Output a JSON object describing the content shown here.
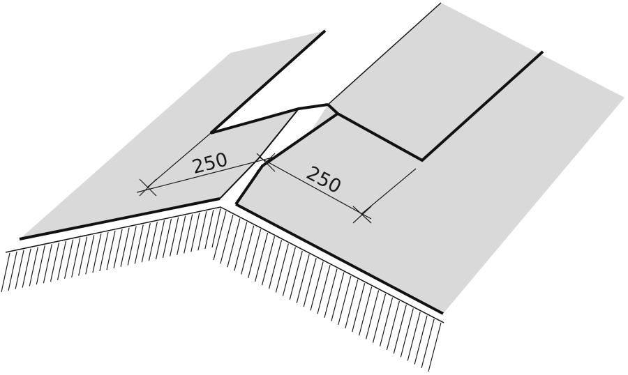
{
  "dimensions": {
    "left": "250",
    "right": "250"
  },
  "colors": {
    "panel_fill": "#d9d9d9",
    "edge_stroke": "#111111",
    "hatch_stroke": "#1a1a1a",
    "background": "#ffffff"
  }
}
